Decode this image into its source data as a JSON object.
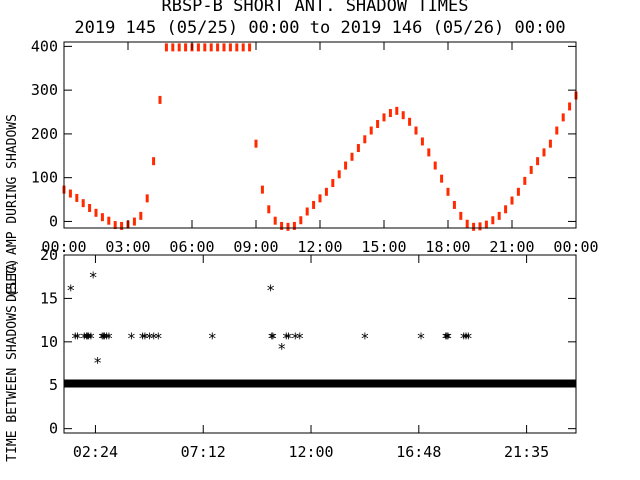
{
  "title": "RBSP-B SHORT ANT. SHADOW TIMES",
  "subtitle": "2019 145 (05/25) 00:00 to 2019 146 (05/26) 00:00",
  "colors": {
    "top_series": "#ff2a00",
    "axes": "#000000",
    "bottom_marker": "#000000"
  },
  "chart_data": [
    {
      "type": "scatter",
      "ylabel": "DELTA AMP DURING SHADOWS",
      "xlabel": "",
      "xlim": [
        0,
        24
      ],
      "ylim": [
        -15,
        410
      ],
      "xticks": [
        "00:00",
        "03:00",
        "06:00",
        "09:00",
        "12:00",
        "15:00",
        "18:00",
        "21:00",
        "00:00"
      ],
      "yticks": [
        "0",
        "100",
        "200",
        "300",
        "400"
      ],
      "series": [
        {
          "x": [
            0.0,
            0.3,
            0.6,
            0.9,
            1.2,
            1.5,
            1.8,
            2.1,
            2.4,
            2.7,
            3.0,
            3.3,
            3.6,
            3.9,
            4.2,
            4.5,
            4.8,
            5.1,
            5.4,
            5.7,
            6.0,
            6.3,
            6.6,
            6.9,
            7.2,
            7.5,
            7.8,
            8.1,
            8.4,
            8.7,
            9.0,
            9.3,
            9.6,
            9.9,
            10.2,
            10.5,
            10.8,
            11.1,
            11.4,
            11.7,
            12.0,
            12.3,
            12.6,
            12.9,
            13.2,
            13.5,
            13.8,
            14.1,
            14.4,
            14.7,
            15.0,
            15.3,
            15.6,
            15.9,
            16.2,
            16.5,
            16.8,
            17.1,
            17.4,
            17.7,
            18.0,
            18.3,
            18.6,
            18.9,
            19.2,
            19.5,
            19.8,
            20.1,
            20.4,
            20.7,
            21.0,
            21.3,
            21.6,
            21.9,
            22.2,
            22.5,
            22.8,
            23.1,
            23.4,
            23.7,
            24.0
          ],
          "y": [
            75,
            66,
            56,
            44,
            33,
            22,
            12,
            4,
            -6,
            -8,
            -5,
            2,
            15,
            55,
            140,
            280,
            400,
            400,
            400,
            400,
            400,
            400,
            400,
            400,
            400,
            400,
            400,
            400,
            400,
            400,
            180,
            75,
            30,
            4,
            -8,
            -10,
            -8,
            5,
            25,
            40,
            55,
            70,
            90,
            110,
            130,
            150,
            170,
            190,
            210,
            225,
            240,
            250,
            255,
            245,
            230,
            210,
            185,
            160,
            130,
            100,
            70,
            40,
            15,
            -3,
            -10,
            -9,
            -5,
            5,
            15,
            30,
            50,
            70,
            95,
            120,
            140,
            160,
            180,
            210,
            240,
            265,
            290
          ]
        }
      ]
    },
    {
      "type": "scatter",
      "ylabel": "TIME BETWEEN SHADOWS (SEC)",
      "xlabel": "",
      "xlim": [
        1.0,
        23.8
      ],
      "ylim": [
        -0.5,
        20
      ],
      "xticks": [
        "02:24",
        "07:12",
        "12:00",
        "16:48",
        "21:35"
      ],
      "yticks": [
        "0",
        "5",
        "10",
        "15",
        "20"
      ],
      "series": [
        {
          "x": [
            1.3,
            1.5,
            1.6,
            1.9,
            2.0,
            2.05,
            2.1,
            2.2,
            2.3,
            2.5,
            2.7,
            2.75,
            2.8,
            2.9,
            3.0,
            4.0,
            4.5,
            4.6,
            4.8,
            5.0,
            5.2,
            7.6,
            10.2,
            10.25,
            10.3,
            10.7,
            10.9,
            11.0,
            11.3,
            11.5,
            14.4,
            16.9,
            18.0,
            18.05,
            18.1,
            18.8,
            18.9,
            19.0
          ],
          "y": [
            16.0,
            10.5,
            10.5,
            10.5,
            10.5,
            10.5,
            10.5,
            10.5,
            17.5,
            7.7,
            10.5,
            10.5,
            10.5,
            10.5,
            10.5,
            10.5,
            10.5,
            10.5,
            10.5,
            10.5,
            10.5,
            10.5,
            16.0,
            10.5,
            10.5,
            9.3,
            10.5,
            10.5,
            10.5,
            10.5,
            10.5,
            10.5,
            10.5,
            10.5,
            10.5,
            10.5,
            10.5,
            10.5
          ]
        },
        {
          "name": "",
          "x_range": [
            1.0,
            23.8
          ],
          "y": 5.2
        }
      ]
    }
  ]
}
